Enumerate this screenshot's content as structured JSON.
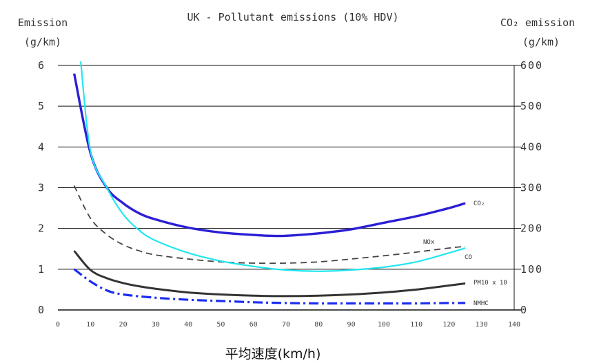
{
  "chart_data": {
    "type": "line",
    "title": "UK - Pollutant emissions (10% HDV)",
    "left_axis_label": [
      "Emission",
      "(g/km)"
    ],
    "right_axis_label": [
      "CO₂ emission",
      "(g/km)"
    ],
    "xlabel": "平均速度(km/h)",
    "xlim": [
      0,
      140
    ],
    "x_ticks": [
      0,
      10,
      20,
      30,
      40,
      50,
      60,
      70,
      80,
      90,
      100,
      110,
      120,
      130,
      140
    ],
    "ylim_left": [
      0,
      6
    ],
    "y_ticks_left": [
      0,
      1,
      2,
      3,
      4,
      5,
      6
    ],
    "ylim_right": [
      0,
      600
    ],
    "y_ticks_right": [
      0,
      100,
      200,
      300,
      400,
      500,
      600
    ],
    "grid": "horizontal",
    "series": [
      {
        "name": "CO₂",
        "axis": "right",
        "color": "#2b1fd6",
        "style": "solid",
        "points": [
          [
            5,
            580
          ],
          [
            10,
            385
          ],
          [
            15,
            300
          ],
          [
            20,
            262
          ],
          [
            25,
            237
          ],
          [
            30,
            222
          ],
          [
            40,
            202
          ],
          [
            50,
            190
          ],
          [
            60,
            184
          ],
          [
            65,
            182
          ],
          [
            70,
            182
          ],
          [
            80,
            188
          ],
          [
            90,
            198
          ],
          [
            100,
            214
          ],
          [
            110,
            230
          ],
          [
            120,
            250
          ],
          [
            125,
            262
          ]
        ]
      },
      {
        "name": "NOx",
        "axis": "left",
        "color": "#444444",
        "style": "dashed",
        "points": [
          [
            5,
            3.05
          ],
          [
            10,
            2.25
          ],
          [
            15,
            1.85
          ],
          [
            20,
            1.6
          ],
          [
            25,
            1.45
          ],
          [
            30,
            1.35
          ],
          [
            40,
            1.25
          ],
          [
            50,
            1.18
          ],
          [
            60,
            1.15
          ],
          [
            70,
            1.15
          ],
          [
            80,
            1.18
          ],
          [
            90,
            1.25
          ],
          [
            100,
            1.33
          ],
          [
            110,
            1.42
          ],
          [
            120,
            1.52
          ],
          [
            125,
            1.56
          ]
        ]
      },
      {
        "name": "CO",
        "axis": "left",
        "color": "#22e6f0",
        "style": "solid",
        "points": [
          [
            7,
            6.1
          ],
          [
            10,
            3.9
          ],
          [
            15,
            3.0
          ],
          [
            20,
            2.35
          ],
          [
            25,
            1.95
          ],
          [
            30,
            1.7
          ],
          [
            40,
            1.4
          ],
          [
            50,
            1.2
          ],
          [
            60,
            1.07
          ],
          [
            70,
            0.98
          ],
          [
            80,
            0.95
          ],
          [
            90,
            0.98
          ],
          [
            100,
            1.05
          ],
          [
            110,
            1.18
          ],
          [
            120,
            1.4
          ],
          [
            125,
            1.52
          ]
        ]
      },
      {
        "name": "PM10 x 10",
        "axis": "left",
        "color": "#333333",
        "style": "solid",
        "points": [
          [
            5,
            1.45
          ],
          [
            10,
            0.98
          ],
          [
            15,
            0.78
          ],
          [
            20,
            0.66
          ],
          [
            25,
            0.58
          ],
          [
            30,
            0.52
          ],
          [
            40,
            0.43
          ],
          [
            50,
            0.38
          ],
          [
            60,
            0.35
          ],
          [
            70,
            0.34
          ],
          [
            80,
            0.35
          ],
          [
            90,
            0.38
          ],
          [
            100,
            0.43
          ],
          [
            110,
            0.5
          ],
          [
            120,
            0.6
          ],
          [
            125,
            0.65
          ]
        ]
      },
      {
        "name": "NMHC",
        "axis": "left",
        "color": "#1a2cf0",
        "style": "dashdot",
        "points": [
          [
            5,
            1.0
          ],
          [
            10,
            0.7
          ],
          [
            15,
            0.48
          ],
          [
            20,
            0.38
          ],
          [
            30,
            0.3
          ],
          [
            40,
            0.25
          ],
          [
            50,
            0.22
          ],
          [
            60,
            0.19
          ],
          [
            70,
            0.17
          ],
          [
            80,
            0.16
          ],
          [
            90,
            0.16
          ],
          [
            100,
            0.16
          ],
          [
            110,
            0.16
          ],
          [
            120,
            0.17
          ],
          [
            125,
            0.17
          ]
        ]
      }
    ]
  }
}
